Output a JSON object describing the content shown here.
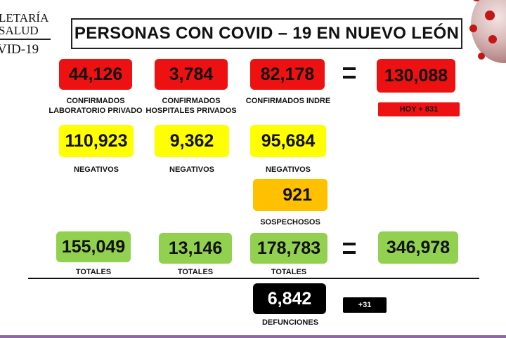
{
  "logo": {
    "line1": "LETARÍA",
    "line2": "SALUD",
    "line3": "VID-19"
  },
  "title": "PERSONAS CON COVID – 19 EN NUEVO LEÓN",
  "confirmed": {
    "lab_privado": {
      "value": "44,126",
      "label_1": "CONFIRMADOS",
      "label_2": "LABORATORIO PRIVADO"
    },
    "hosp_privados": {
      "value": "3,784",
      "label_1": "CONFIRMADOS",
      "label_2": "HOSPITALES PRIVADOS"
    },
    "indre": {
      "value": "82,178",
      "label": "CONFIRMADOS INDRE"
    },
    "total": {
      "value": "130,088",
      "today": "HOY + 831"
    }
  },
  "negatives": {
    "col1": {
      "value": "110,923",
      "label": "NEGATIVOS"
    },
    "col2": {
      "value": "9,362",
      "label": "NEGATIVOS"
    },
    "col3": {
      "value": "95,684",
      "label": "NEGATIVOS"
    }
  },
  "suspects": {
    "value": "921",
    "label": "SOSPECHOSOS"
  },
  "totals": {
    "col1": {
      "value": "155,049",
      "label": "TOTALES"
    },
    "col2": {
      "value": "13,146",
      "label": "TOTALES"
    },
    "col3": {
      "value": "178,783",
      "label": "TOTALES"
    },
    "grand": {
      "value": "346,978"
    }
  },
  "deaths": {
    "value": "6,842",
    "label": "DEFUNCIONES",
    "today": "+31"
  },
  "colors": {
    "red": "#ee1111",
    "yellow": "#ffff00",
    "orange": "#ffc000",
    "green": "#92d050",
    "black": "#000000"
  }
}
